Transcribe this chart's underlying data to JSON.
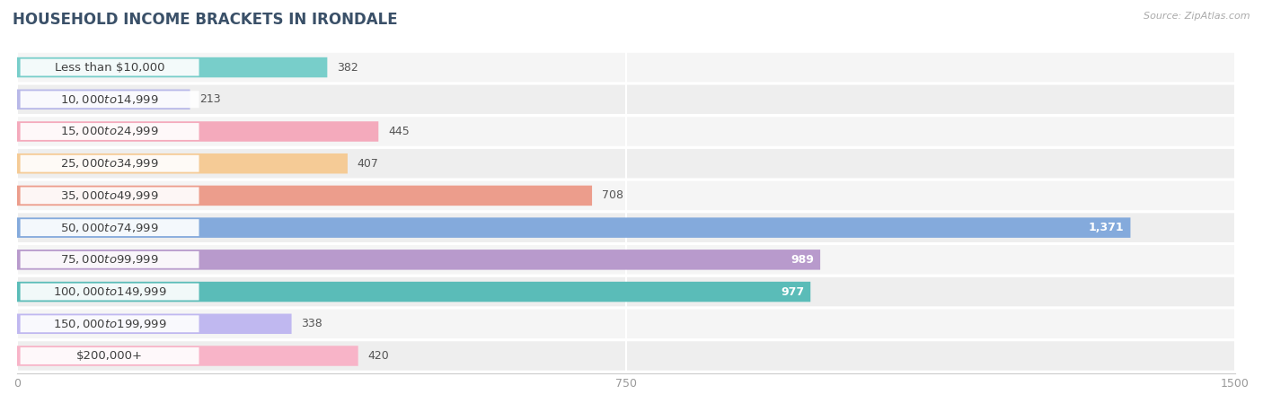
{
  "title": "HOUSEHOLD INCOME BRACKETS IN IRONDALE",
  "source": "Source: ZipAtlas.com",
  "categories": [
    "Less than $10,000",
    "$10,000 to $14,999",
    "$15,000 to $24,999",
    "$25,000 to $34,999",
    "$35,000 to $49,999",
    "$50,000 to $74,999",
    "$75,000 to $99,999",
    "$100,000 to $149,999",
    "$150,000 to $199,999",
    "$200,000+"
  ],
  "values": [
    382,
    213,
    445,
    407,
    708,
    1371,
    989,
    977,
    338,
    420
  ],
  "bar_colors": [
    "#78ceca",
    "#b8b8e8",
    "#f4aabc",
    "#f5cb96",
    "#ec9d8c",
    "#84aadc",
    "#b89acc",
    "#5abcb8",
    "#c0b8f0",
    "#f8b4c8"
  ],
  "xlim": [
    0,
    1500
  ],
  "xticks": [
    0,
    750,
    1500
  ],
  "background_color": "#ffffff",
  "bar_bg_color": "#ebebeb",
  "row_bg_color": "#f0f0f0",
  "title_fontsize": 12,
  "label_fontsize": 9.5,
  "value_fontsize": 9,
  "bar_height": 0.62,
  "value_inside_threshold": 900
}
